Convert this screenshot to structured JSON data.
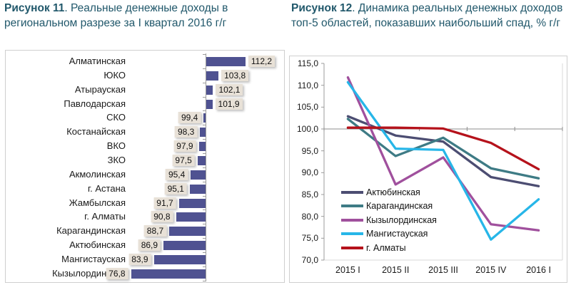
{
  "titles": {
    "fig11_bold": "Рисунок 11",
    "fig11_rest": ". Реальные денежные доходы в региональном разрезе за I квартал 2016 г/г",
    "fig12_bold": "Рисунок 12",
    "fig12_rest": ". Динамика реальных денежных доходов топ-5 областей, показавших наибольший спад, % г/г"
  },
  "colors": {
    "title_text": "#21586b",
    "bar_fill": "#4f5291",
    "value_chip_bg": "#e8e1d7",
    "box_border": "#cfcfcf",
    "axis_line": "#9b9b9b",
    "hundred_line": "#8c8c8c",
    "plot_border": "#d9d9d9"
  },
  "chart_data": [
    {
      "type": "bar",
      "orientation": "horizontal",
      "title": "Рисунок 11. Реальные денежные доходы в региональном разрезе за I квартал 2016 г/г",
      "categories": [
        "Алматинская",
        "ЮКО",
        "Атырауская",
        "Павлодарская",
        "СКО",
        "Костанайская",
        "ВКО",
        "ЗКО",
        "Акмолинская",
        "г. Астана",
        "Жамбылская",
        "г. Алматы",
        "Карагандинская",
        "Актюбинская",
        "Мангистауская",
        "Кызылординская"
      ],
      "values": [
        112.2,
        103.8,
        102.1,
        101.9,
        99.4,
        98.3,
        97.9,
        97.5,
        95.4,
        95.1,
        91.7,
        90.8,
        88.7,
        86.9,
        83.9,
        76.8
      ],
      "value_labels": [
        "112,2",
        "103,8",
        "102,1",
        "101,9",
        "99,4",
        "98,3",
        "97,9",
        "97,5",
        "95,4",
        "95,1",
        "91,7",
        "90,8",
        "88,7",
        "86,9",
        "83,9",
        "76,8"
      ],
      "baseline": 100,
      "xlim": [
        70,
        116
      ],
      "grid": false,
      "bar_color": "#4f5291"
    },
    {
      "type": "line",
      "title": "Рисунок 12. Динамика реальных денежных доходов топ-5 областей, показавших наибольший спад, % г/г",
      "x": [
        "2015 I",
        "2015 II",
        "2015 III",
        "2015 IV",
        "2016 I"
      ],
      "ylim": [
        70,
        115
      ],
      "ytick_step": 5,
      "ytick_labels": [
        "115,0",
        "110,0",
        "105,0",
        "100,0",
        "95,0",
        "90,0",
        "85,0",
        "80,0",
        "75,0",
        "70,0"
      ],
      "gridline_at": 100,
      "legend_position": "inside-bottom-left",
      "series": [
        {
          "name": "Актюбинская",
          "color": "#4c4d72",
          "values": [
            102.9,
            98.5,
            97.1,
            89.0,
            86.9
          ]
        },
        {
          "name": "Карагандинская",
          "color": "#3e7b85",
          "values": [
            102.3,
            93.8,
            98.0,
            91.0,
            88.7
          ]
        },
        {
          "name": "Кызылординская",
          "color": "#a0509d",
          "values": [
            111.8,
            87.3,
            93.5,
            78.2,
            76.8
          ]
        },
        {
          "name": "Мангистауская",
          "color": "#27b6e8",
          "values": [
            110.7,
            95.5,
            95.2,
            74.7,
            83.9
          ]
        },
        {
          "name": "г. Алматы",
          "color": "#b5121b",
          "values": [
            100.3,
            100.3,
            100.1,
            96.8,
            90.8
          ]
        }
      ]
    }
  ]
}
